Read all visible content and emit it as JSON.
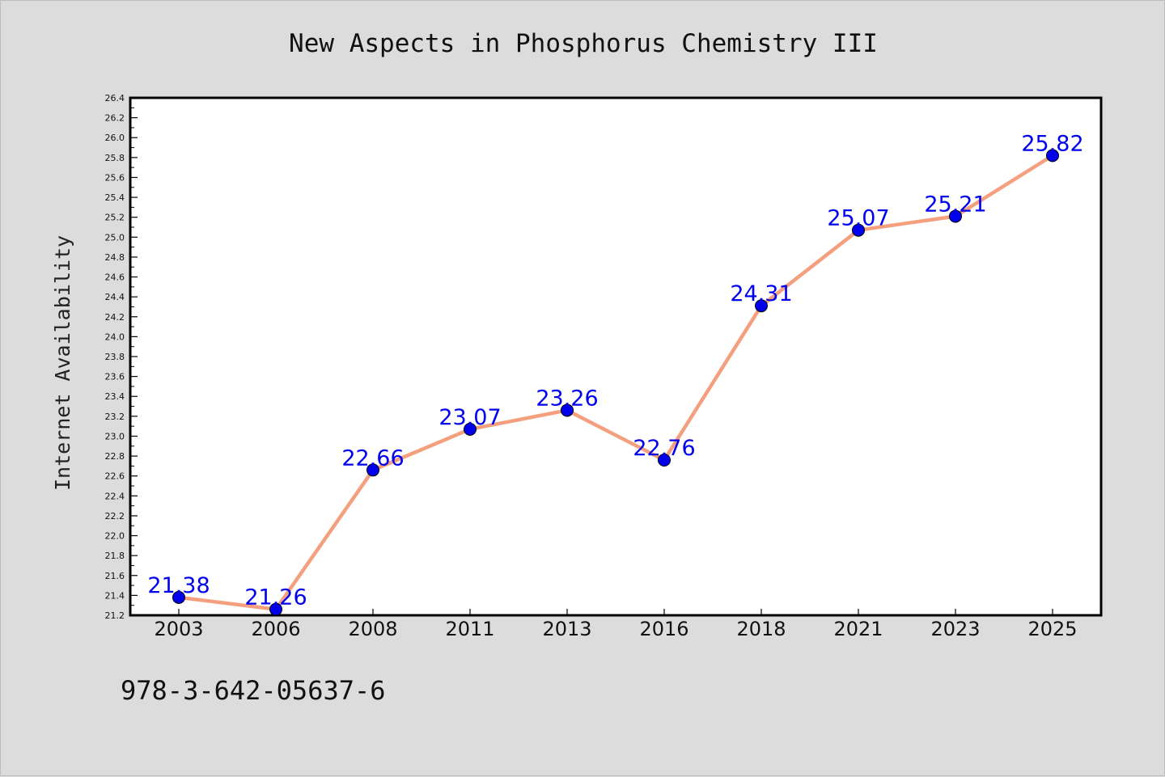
{
  "chart_data": {
    "type": "line",
    "title": "New Aspects in Phosphorus Chemistry III",
    "xlabel": "",
    "ylabel": "Internet Availability",
    "footer": "978-3-642-05637-6",
    "categories": [
      "2003",
      "2006",
      "2008",
      "2011",
      "2013",
      "2016",
      "2018",
      "2021",
      "2023",
      "2025"
    ],
    "series": [
      {
        "values": [
          21.38,
          21.26,
          22.66,
          23.07,
          23.26,
          22.76,
          24.31,
          25.07,
          25.21,
          25.82
        ],
        "labels": [
          "21.38",
          "21.26",
          "22.66",
          "23.07",
          "23.26",
          "22.76",
          "24.31",
          "25.07",
          "25.21",
          "25.82"
        ],
        "line_color": "#f4a07f",
        "marker_color": "#0000ee",
        "label_color": "#0000ee"
      }
    ],
    "ylim": [
      21.2,
      26.4
    ],
    "y_ticks": [
      "21.2",
      "21.4",
      "21.6",
      "21.8",
      "22.0",
      "22.2",
      "22.4",
      "22.6",
      "22.8",
      "23.0",
      "23.2",
      "23.4",
      "23.6",
      "23.8",
      "24.0",
      "24.2",
      "24.4",
      "24.6",
      "24.8",
      "25.0",
      "25.2",
      "25.4",
      "25.6",
      "25.8",
      "26.0",
      "26.2",
      "26.4"
    ],
    "grid": false,
    "legend": "none",
    "colors": {
      "background": "#dcdcdc",
      "plot_background": "#ffffff",
      "frame": "#000000"
    }
  }
}
